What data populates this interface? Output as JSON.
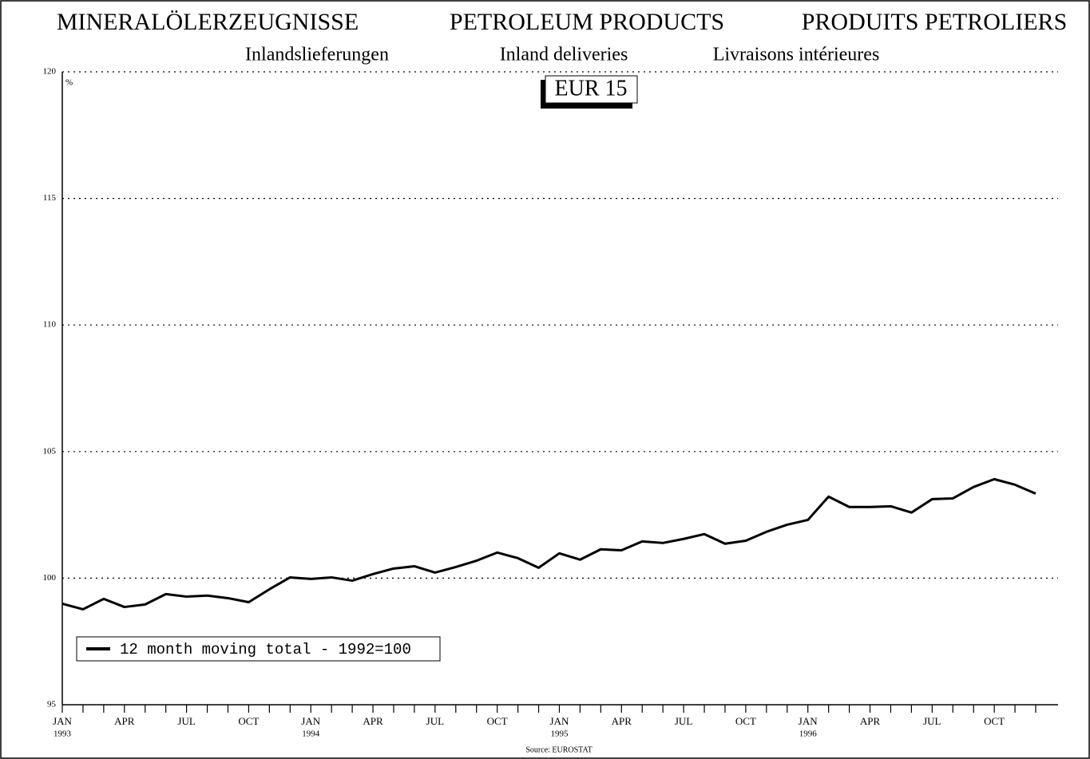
{
  "chart_data": {
    "type": "line",
    "title_parts": [
      "MINERALÖLERZEUGNISSE",
      "PETROLEUM PRODUCTS",
      "PRODUITS PETROLIERS"
    ],
    "subtitle_parts": [
      "Inlandslieferungen",
      "Inland deliveries",
      "Livraisons intérieures"
    ],
    "region_label": "EUR 15",
    "ylabel": "%",
    "source": "Source: EUROSTAT",
    "categories": [
      "JAN",
      null,
      null,
      "APR",
      null,
      null,
      "JUL",
      null,
      null,
      "OCT",
      null,
      null,
      "JAN",
      null,
      null,
      "APR",
      null,
      null,
      "JUL",
      null,
      null,
      "OCT",
      null,
      null,
      "JAN",
      null,
      null,
      "APR",
      null,
      null,
      "JUL",
      null,
      null,
      "OCT",
      null,
      null,
      "JAN",
      null,
      null,
      "APR",
      null,
      null,
      "JUL",
      null,
      null,
      "OCT",
      null,
      null
    ],
    "year_labels": [
      "1993",
      null,
      null,
      null,
      null,
      null,
      null,
      null,
      null,
      null,
      null,
      null,
      "1994",
      null,
      null,
      null,
      null,
      null,
      null,
      null,
      null,
      null,
      null,
      null,
      "1995",
      null,
      null,
      null,
      null,
      null,
      null,
      null,
      null,
      null,
      null,
      null,
      "1996",
      null,
      null,
      null,
      null,
      null,
      null,
      null,
      null,
      null,
      null,
      null
    ],
    "series": [
      {
        "name": "12 month moving total - 1992=100",
        "color": "#000000",
        "values": [
          98.99,
          98.77,
          99.18,
          98.86,
          98.96,
          99.37,
          99.27,
          99.31,
          99.21,
          99.05,
          99.56,
          100.03,
          99.97,
          100.03,
          99.9,
          100.16,
          100.38,
          100.47,
          100.22,
          100.44,
          100.69,
          101.01,
          100.79,
          100.41,
          100.98,
          100.73,
          101.14,
          101.1,
          101.45,
          101.39,
          101.55,
          101.74,
          101.36,
          101.48,
          101.83,
          102.11,
          102.3,
          103.22,
          102.81,
          102.81,
          102.84,
          102.59,
          103.12,
          103.15,
          103.6,
          103.91,
          103.69,
          103.34
        ]
      }
    ],
    "ylim": [
      95,
      120
    ],
    "yticks": [
      95,
      100,
      105,
      110,
      115,
      120
    ],
    "grid": true,
    "legend": "lower left"
  }
}
